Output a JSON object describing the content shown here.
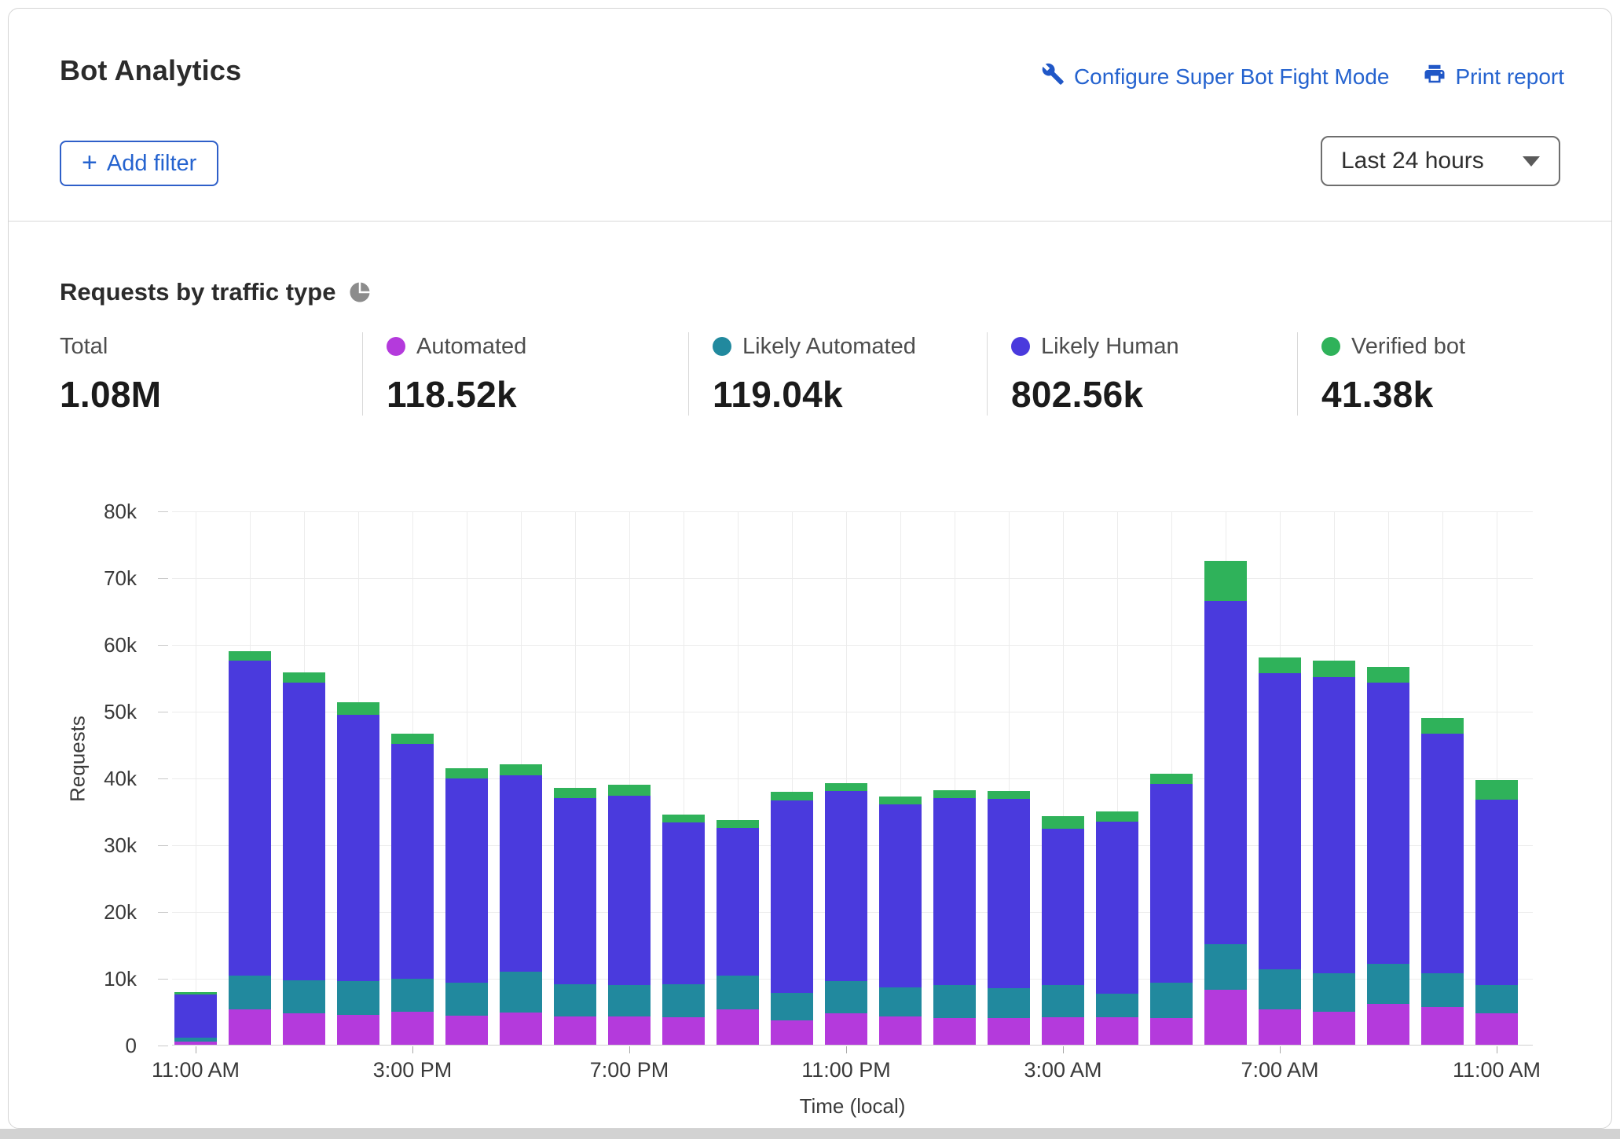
{
  "header": {
    "title": "Bot Analytics",
    "actions": [
      {
        "label": "Configure Super Bot Fight Mode",
        "icon": "wrench-icon"
      },
      {
        "label": "Print report",
        "icon": "printer-icon"
      }
    ],
    "add_filter_plus": "+",
    "add_filter_label": "Add filter",
    "time_range_value": "Last 24 hours"
  },
  "section": {
    "title": "Requests by traffic type"
  },
  "stats": [
    {
      "label": "Total",
      "value": "1.08M",
      "color": null
    },
    {
      "label": "Automated",
      "value": "118.52k",
      "color": "#b43adc"
    },
    {
      "label": "Likely Automated",
      "value": "119.04k",
      "color": "#21899e"
    },
    {
      "label": "Likely Human",
      "value": "802.56k",
      "color": "#4a3add"
    },
    {
      "label": "Verified bot",
      "value": "41.38k",
      "color": "#2fb25a"
    }
  ],
  "chart_data": {
    "type": "bar",
    "stacked": true,
    "title": "Requests by traffic type",
    "xlabel": "Time (local)",
    "ylabel": "Requests",
    "ylim": [
      0,
      80000
    ],
    "grid": true,
    "ytick_labels": [
      "0",
      "10k",
      "20k",
      "30k",
      "40k",
      "50k",
      "60k",
      "70k",
      "80k"
    ],
    "xticks": [
      {
        "label": "11:00 AM",
        "bar": 0
      },
      {
        "label": "3:00 PM",
        "bar": 4
      },
      {
        "label": "7:00 PM",
        "bar": 8
      },
      {
        "label": "11:00 PM",
        "bar": 12
      },
      {
        "label": "3:00 AM",
        "bar": 16
      },
      {
        "label": "7:00 AM",
        "bar": 20
      },
      {
        "label": "11:00 AM",
        "bar": 24
      }
    ],
    "series": [
      {
        "name": "Automated",
        "color": "#b43adc",
        "values": [
          500,
          5300,
          4700,
          4500,
          5000,
          4400,
          4800,
          4300,
          4300,
          4100,
          5300,
          3600,
          4700,
          4200,
          4000,
          4000,
          4100,
          4100,
          4000,
          8300,
          5300,
          5000,
          6100,
          5600,
          4700
        ]
      },
      {
        "name": "Likely Automated",
        "color": "#21899e",
        "values": [
          600,
          5000,
          5000,
          5000,
          4900,
          4900,
          6100,
          4800,
          4700,
          5000,
          5000,
          4200,
          4800,
          4400,
          5000,
          4500,
          4800,
          3600,
          5300,
          6800,
          6000,
          5700,
          6000,
          5100,
          4300
        ]
      },
      {
        "name": "Likely Human",
        "color": "#4a3add",
        "values": [
          6400,
          47200,
          44600,
          39900,
          35200,
          30600,
          29500,
          27800,
          28300,
          24200,
          22200,
          28800,
          28500,
          27400,
          27900,
          28300,
          23500,
          25700,
          29700,
          51400,
          44400,
          44400,
          42100,
          35900,
          27700
        ]
      },
      {
        "name": "Verified bot",
        "color": "#2fb25a",
        "values": [
          400,
          1400,
          1500,
          1900,
          1500,
          1500,
          1600,
          1600,
          1600,
          1200,
          1100,
          1300,
          1200,
          1200,
          1200,
          1200,
          1800,
          1500,
          1600,
          6000,
          2300,
          2400,
          2400,
          2300,
          3000
        ]
      }
    ]
  }
}
